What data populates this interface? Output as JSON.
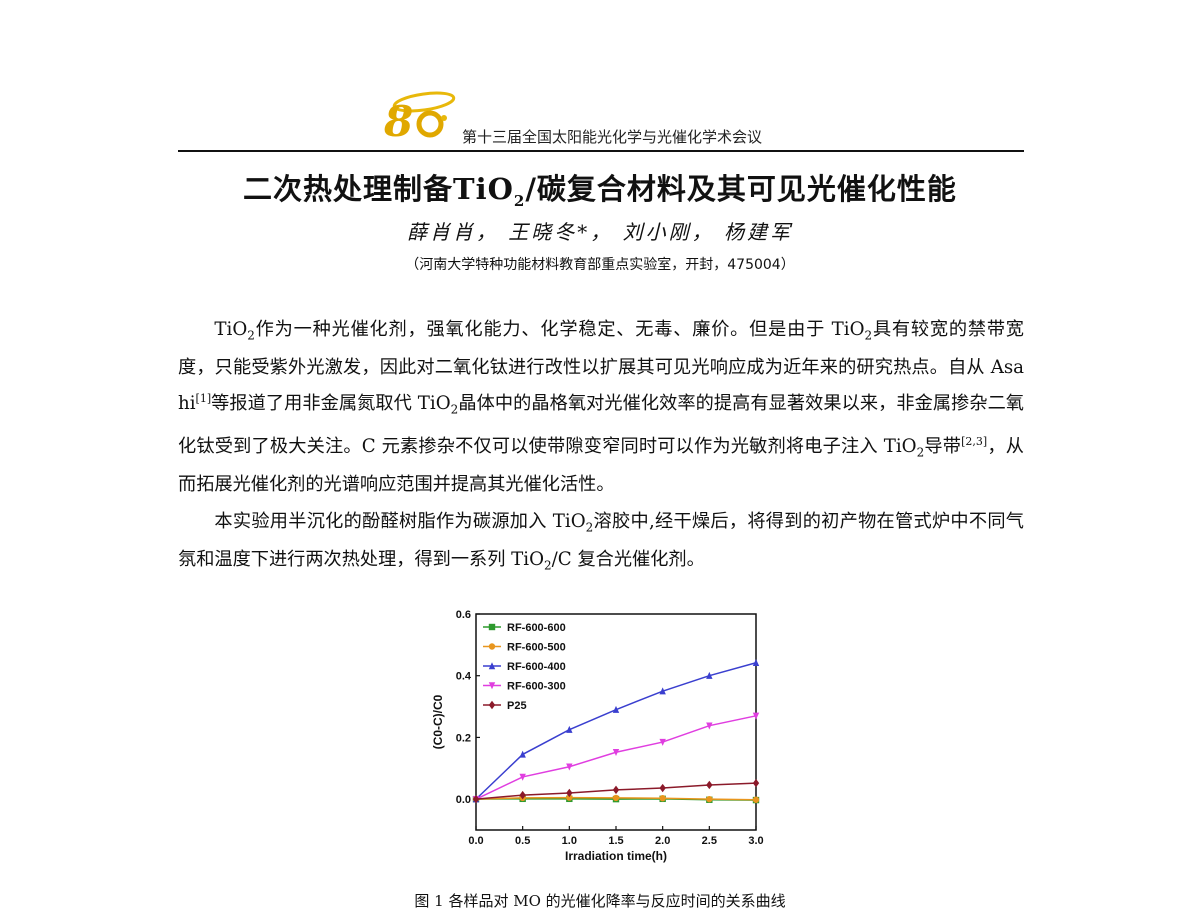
{
  "header": {
    "conference": "第十三届全国太阳能光化学与光催化学术会议"
  },
  "paper": {
    "title": "二次热处理制备TiO2/碳复合材料及其可见光催化性能",
    "authors": "薛肖肖， 王晓冬*， 刘小刚， 杨建军",
    "affiliation": "（河南大学特种功能材料教育部重点实验室，开封，475004）",
    "paragraphs": [
      "TiO2作为一种光催化剂，强氧化能力、化学稳定、无毒、廉价。但是由于 TiO2具有较宽的禁带宽度，只能受紫外光激发，因此对二氧化钛进行改性以扩展其可见光响应成为近年来的研究热点。自从 Asahi[1]等报道了用非金属氮取代 TiO2晶体中的晶格氧对光催化效率的提高有显著效果以来，非金属掺杂二氧化钛受到了极大关注。C 元素掺杂不仅可以使带隙变窄同时可以作为光敏剂将电子注入 TiO2导带[2,3]，从而拓展光催化剂的光谱响应范围并提高其光催化活性。",
      "本实验用半沉化的酚醛树脂作为碳源加入 TiO2溶胶中,经干燥后，将得到的初产物在管式炉中不同气氛和温度下进行两次热处理，得到一系列 TiO2/C 复合光催化剂。"
    ],
    "figure_caption": "图 1 各样品对 MO 的光催化降率与反应时间的关系曲线"
  },
  "chart_data": {
    "type": "line",
    "title": "",
    "xlabel": "Irradiation time(h)",
    "ylabel": "(C0-C)/C0",
    "xlim": [
      0.0,
      3.0
    ],
    "ylim": [
      -0.1,
      0.6
    ],
    "x_ticks": [
      "0.0",
      "0.5",
      "1.0",
      "1.5",
      "2.0",
      "2.5",
      "3.0"
    ],
    "y_ticks": [
      "0.0",
      "0.2",
      "0.4",
      "0.6"
    ],
    "legend_position": "top-left",
    "x": [
      0,
      0.5,
      1.0,
      1.5,
      2.0,
      2.5,
      3.0
    ],
    "series": [
      {
        "name": "RF-600-600",
        "color": "#2e9a2e",
        "marker": "square",
        "values": [
          0.0,
          0.001,
          0.001,
          0.0,
          0.001,
          -0.002,
          -0.003
        ]
      },
      {
        "name": "RF-600-500",
        "color": "#e8961e",
        "marker": "circle",
        "values": [
          0.0,
          0.004,
          0.005,
          0.004,
          0.003,
          0.0,
          -0.002
        ]
      },
      {
        "name": "RF-600-400",
        "color": "#3a3fcf",
        "marker": "triangle",
        "values": [
          0.0,
          0.145,
          0.225,
          0.29,
          0.35,
          0.4,
          0.442
        ]
      },
      {
        "name": "RF-600-300",
        "color": "#e03ee0",
        "marker": "triangle-down",
        "values": [
          0.0,
          0.072,
          0.105,
          0.152,
          0.185,
          0.238,
          0.27
        ]
      },
      {
        "name": "P25",
        "color": "#8b1a2a",
        "marker": "diamond",
        "values": [
          0.0,
          0.013,
          0.02,
          0.03,
          0.036,
          0.046,
          0.052
        ]
      }
    ]
  }
}
